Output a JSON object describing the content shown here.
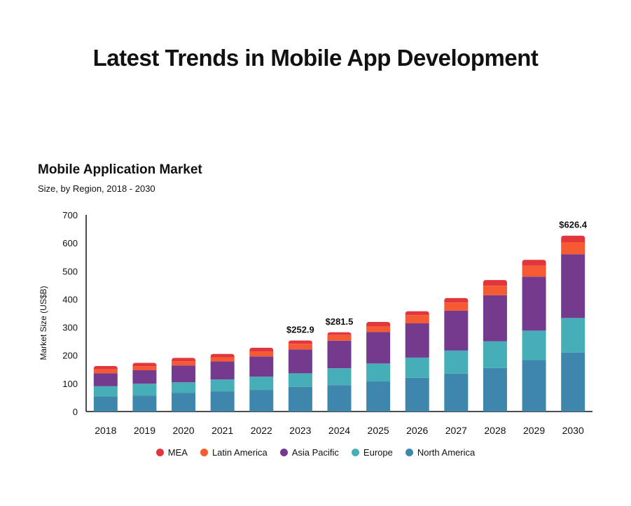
{
  "page": {
    "title": "Latest Trends in Mobile App Development"
  },
  "chart_data": {
    "type": "bar",
    "stacked": true,
    "title": "Mobile Application Market",
    "subtitle": "Size, by Region, 2018 - 2030",
    "xlabel": "",
    "ylabel": "Market Size (US$B)",
    "ylim": [
      0,
      700
    ],
    "yticks": [
      0,
      100,
      200,
      300,
      400,
      500,
      600,
      700
    ],
    "grid": false,
    "legend_position": "bottom",
    "categories": [
      "2018",
      "2019",
      "2020",
      "2021",
      "2022",
      "2023",
      "2024",
      "2025",
      "2026",
      "2027",
      "2028",
      "2029",
      "2030"
    ],
    "series": [
      {
        "name": "North America",
        "color": "#3f86ad",
        "values": [
          54,
          57,
          66,
          72,
          77,
          88,
          94,
          107,
          120,
          135,
          155,
          183,
          210
        ]
      },
      {
        "name": "Europe",
        "color": "#46aeb6",
        "values": [
          36,
          42,
          38,
          42,
          47,
          48,
          60,
          64,
          72,
          82,
          95,
          105,
          123
        ]
      },
      {
        "name": "Asia Pacific",
        "color": "#743a8e",
        "values": [
          46,
          48,
          60,
          64,
          72,
          85,
          98,
          112,
          122,
          142,
          164,
          192,
          227
        ]
      },
      {
        "name": "Latin America",
        "color": "#f65a33",
        "values": [
          14,
          14,
          15,
          15,
          18,
          20,
          20,
          20,
          29,
          29,
          34,
          39,
          43
        ]
      },
      {
        "name": "MEA",
        "color": "#e3353c",
        "values": [
          12,
          12,
          12,
          12,
          13,
          12,
          10,
          16,
          14,
          16,
          20,
          21,
          23
        ]
      }
    ],
    "annotations": [
      {
        "category": "2023",
        "label": "$252.9"
      },
      {
        "category": "2024",
        "label": "$281.5"
      },
      {
        "category": "2030",
        "label": "$626.4"
      }
    ]
  }
}
